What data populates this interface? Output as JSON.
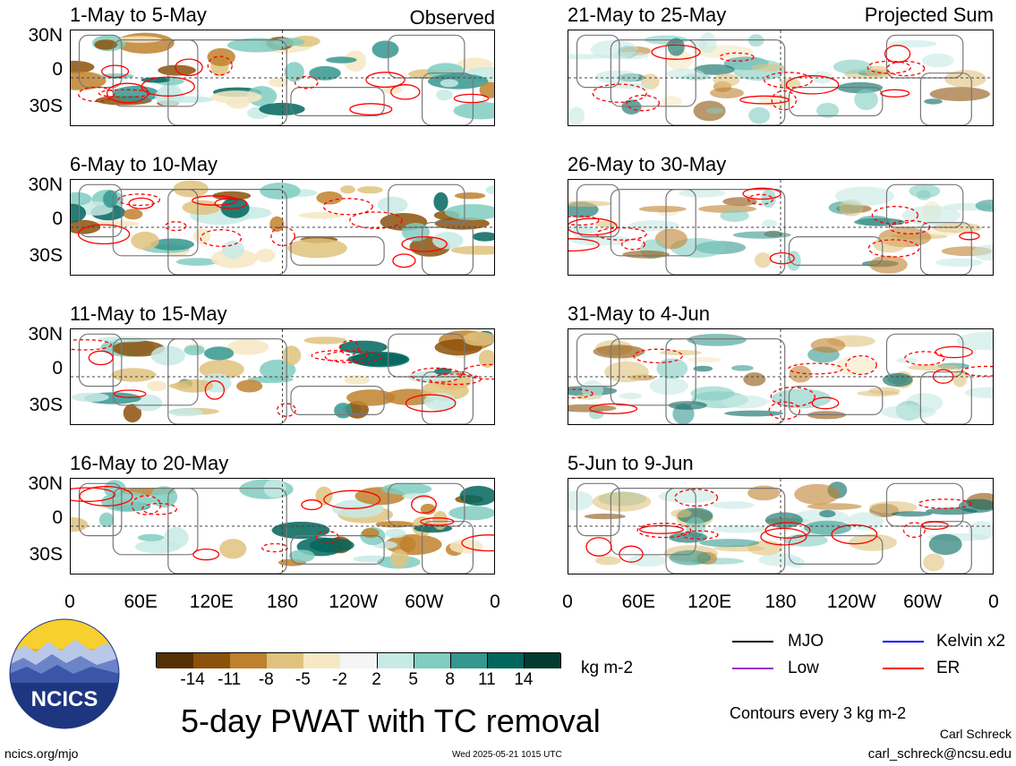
{
  "panels_left": [
    {
      "title": "1-May to 5-May",
      "tag": "Observed"
    },
    {
      "title": "6-May to 10-May",
      "tag": ""
    },
    {
      "title": "11-May to 15-May",
      "tag": ""
    },
    {
      "title": "16-May to 20-May",
      "tag": ""
    }
  ],
  "panels_right": [
    {
      "title": "21-May to 25-May",
      "tag": "Projected Sum"
    },
    {
      "title": "26-May to 30-May",
      "tag": ""
    },
    {
      "title": "31-May to 4-Jun",
      "tag": ""
    },
    {
      "title": "5-Jun to 9-Jun",
      "tag": ""
    }
  ],
  "lat_labels": [
    "30N",
    "0",
    "30S"
  ],
  "lon_labels": [
    "0",
    "60E",
    "120E",
    "180",
    "120W",
    "60W",
    "0"
  ],
  "colorbar": {
    "labels": [
      "-14",
      "-11",
      "-8",
      "-5",
      "-2",
      "2",
      "5",
      "8",
      "11",
      "14"
    ],
    "colors": [
      "#543005",
      "#8c510a",
      "#bf812d",
      "#dfc27d",
      "#f6e8c3",
      "#f5f5f5",
      "#c7eae5",
      "#80cdc1",
      "#35978f",
      "#01665e",
      "#003c30"
    ],
    "units": "kg m-2"
  },
  "legend": {
    "items": [
      {
        "label": "MJO",
        "color": "#000000"
      },
      {
        "label": "Kelvin x2",
        "color": "#0000ff"
      },
      {
        "label": "Low",
        "color": "#9932cc"
      },
      {
        "label": "ER",
        "color": "#ff0000"
      }
    ],
    "contour_note": "Contours every 3 kg m-2"
  },
  "footer": {
    "title": "5-day PWAT with TC removal",
    "url": "ncics.org/mjo",
    "timestamp": "Wed 2025-05-21 1015 UTC",
    "author": "Carl Schreck",
    "email": "carl_schreck@ncsu.edu",
    "logo_text": "NCICS"
  }
}
